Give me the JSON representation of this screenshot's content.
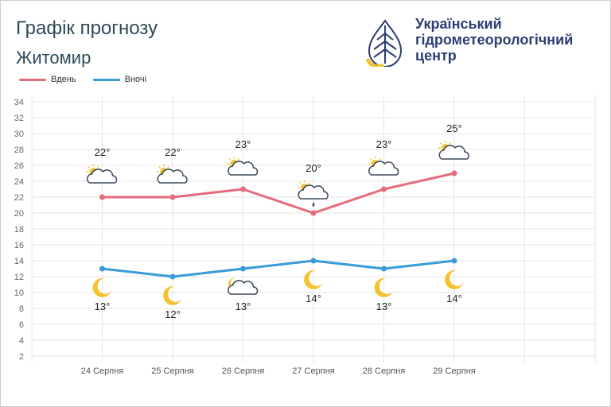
{
  "header": {
    "title": "Графік прогнозу",
    "city": "Житомир"
  },
  "brand": {
    "line1": "Український",
    "line2": "гідрометеорологічний",
    "line3": "центр",
    "logo_icon": "uhmc-logo-icon"
  },
  "colors": {
    "day": "#e56b7d",
    "night": "#3a9bd9",
    "title": "#2d4b57",
    "brand": "#2c3e73",
    "sun": "#f4c430"
  },
  "chart_data": {
    "type": "line",
    "categories": [
      "24 Серпня",
      "25 Серпня",
      "26 Серпня",
      "27 Серпня",
      "28 Серпня",
      "29 Серпня"
    ],
    "series": [
      {
        "name": "Вдень",
        "values": [
          22,
          22,
          23,
          20,
          23,
          25
        ],
        "labels": [
          "22°",
          "22°",
          "23°",
          "20°",
          "23°",
          "25°"
        ],
        "icons": [
          "partly-cloudy-icon",
          "partly-cloudy-icon",
          "partly-cloudy-icon",
          "rain-cloud-icon",
          "partly-cloudy-icon",
          "partly-cloudy-icon"
        ]
      },
      {
        "name": "Вночі",
        "values": [
          13,
          12,
          13,
          14,
          13,
          14
        ],
        "labels": [
          "13°",
          "12°",
          "13°",
          "14°",
          "13°",
          "14°"
        ],
        "icons": [
          "moon-icon",
          "moon-icon",
          "partly-cloudy-night-icon",
          "moon-icon",
          "moon-icon",
          "moon-icon"
        ]
      }
    ],
    "ylim": [
      2,
      34
    ],
    "yticks": [
      2,
      4,
      6,
      8,
      10,
      12,
      14,
      16,
      18,
      20,
      22,
      24,
      26,
      28,
      30,
      32,
      34
    ],
    "grid": true,
    "legend": "top-left"
  }
}
